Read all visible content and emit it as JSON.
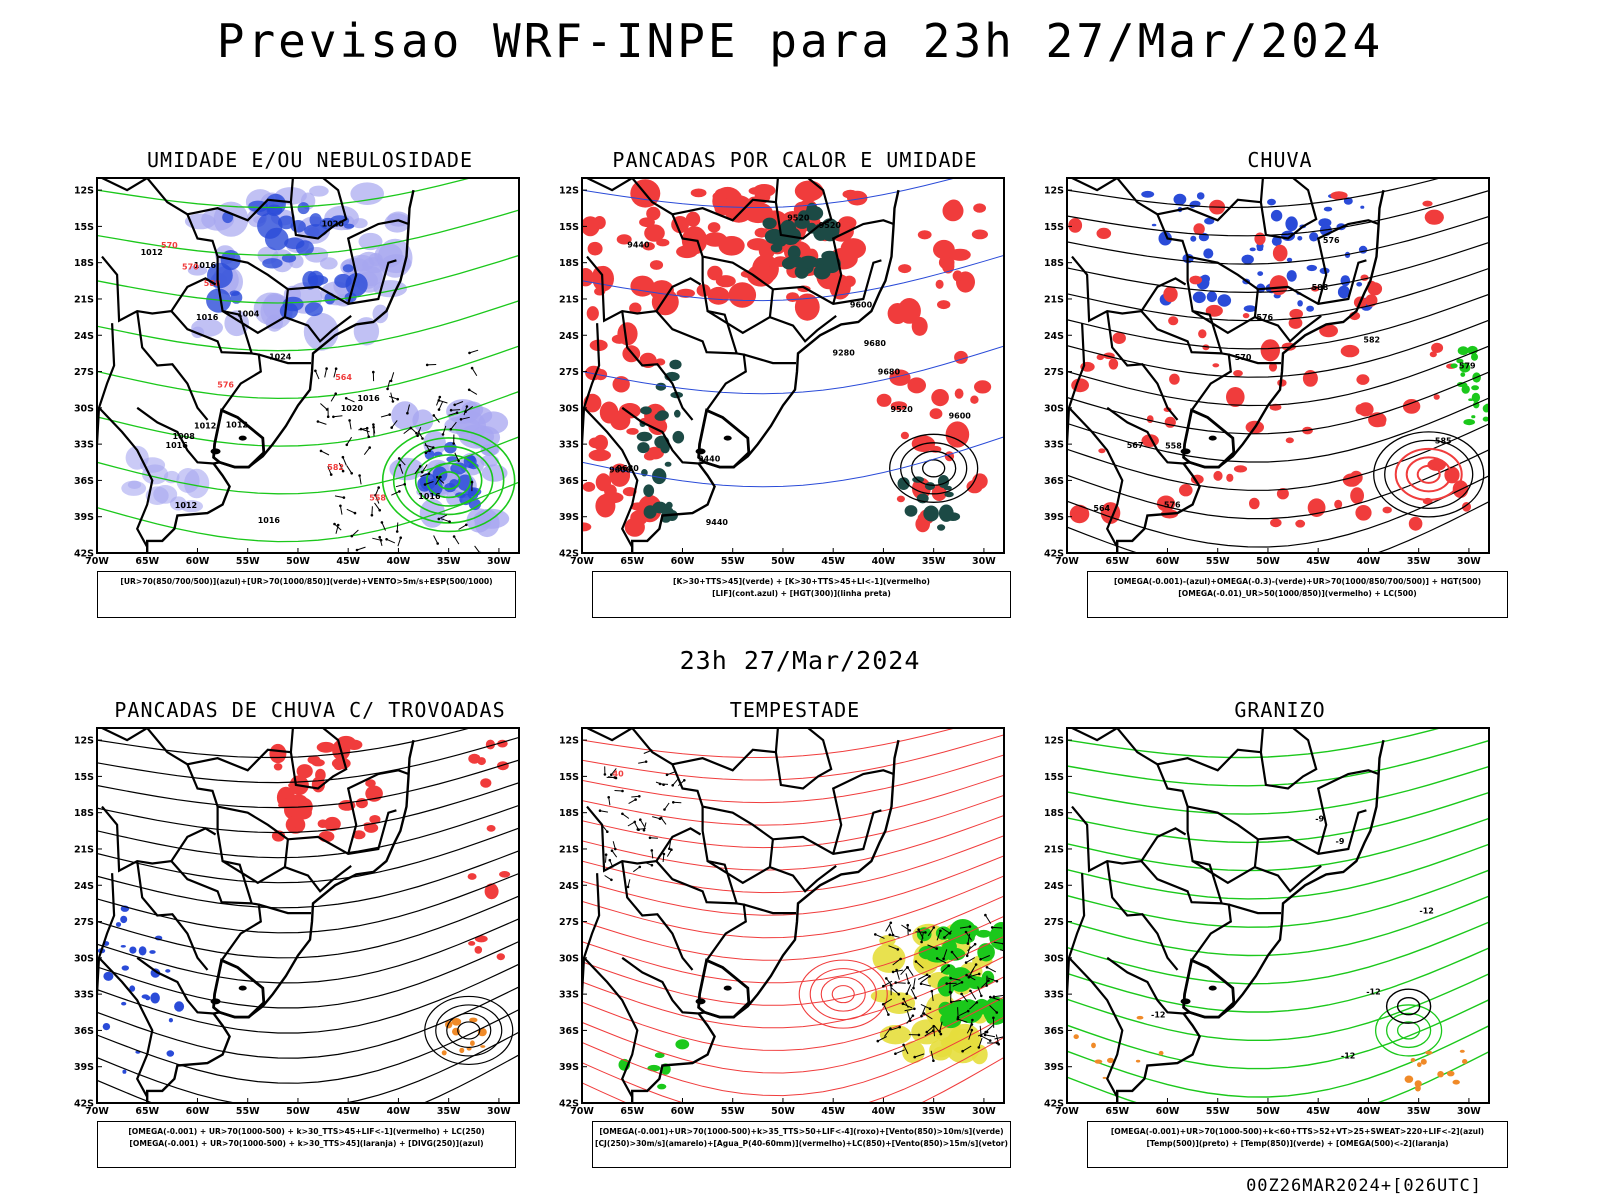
{
  "header": {
    "title": "Previsao WRF-INPE  para 23h 27/Mar/2024"
  },
  "middle_title": "23h 27/Mar/2024",
  "footer_code": "00Z26MAR2024+[026UTC]",
  "axes": {
    "lat_labels": [
      "12S",
      "15S",
      "18S",
      "21S",
      "24S",
      "27S",
      "30S",
      "33S",
      "36S",
      "39S",
      "42S"
    ],
    "lon_labels": [
      "70W",
      "65W",
      "60W",
      "55W",
      "50W",
      "45W",
      "40W",
      "35W",
      "30W"
    ],
    "lat_range": [
      -42,
      -11
    ],
    "lon_range": [
      -70,
      -28
    ]
  },
  "colors": {
    "blue": "#2a4bd8",
    "light_blue": "#a7a6f0",
    "green": "#1bc81b",
    "red": "#f03c3c",
    "dark_teal": "#1c4a45",
    "orange": "#f08a28",
    "yellow": "#e6de3c"
  },
  "panels": [
    {
      "id": "umidade",
      "title": "UMIDADE E/OU NEBULOSIDADE",
      "caption": [
        "[UR>70(850/700/500)](azul)+[UR>70(1000/850)](verde)+VENTO>5m/s+ESP(500/1000)"
      ],
      "contour_labels": [
        "1012",
        "1012",
        "1016",
        "1016",
        "1024",
        "1020",
        "1012",
        "1012",
        "1016",
        "1016",
        "1016",
        "1020",
        "1008",
        "1004",
        "1016",
        "570",
        "564",
        "558",
        "576",
        "570",
        "582",
        "588"
      ]
    },
    {
      "id": "pancadas_calor",
      "title": "PANCADAS POR CALOR E UMIDADE",
      "caption": [
        "[K>30+TTS>45](verde) + [K>30+TTS>45+LI<-1](vermelho)",
        "[LIF](cont.azul) + [HGT(300)](linha preta)"
      ],
      "contour_labels": [
        "9680",
        "9680",
        "9680",
        "9600",
        "9600",
        "9520",
        "9440",
        "9600",
        "9520",
        "9440",
        "9520",
        "9280",
        "9440"
      ]
    },
    {
      "id": "chuva",
      "title": "CHUVA",
      "caption": [
        "[OMEGA(-0.001)-(azul)+OMEGA(-0.3)-(verde)+UR>70(1000/850/700/500)] + HGT(500)",
        "[OMEGA(-0.01)_UR>50(1000/850)](vermelho) + LC(500)"
      ],
      "contour_labels": [
        "585",
        "588",
        "582",
        "576",
        "570",
        "576",
        "567",
        "564",
        "558",
        "579",
        "576"
      ]
    },
    {
      "id": "pancadas_trovoadas",
      "title": "PANCADAS DE CHUVA C/ TROVOADAS",
      "caption": [
        "[OMEGA(-0.001) + UR>70(1000-500) + k>30_TTS>45+LIF<-1](vermelho) + LC(250)",
        "[OMEGA(-0.001) + UR>70(1000-500) + k>30_TTS>45](laranja) + [DIVG(250)](azul)"
      ],
      "contour_labels": []
    },
    {
      "id": "tempestade",
      "title": "TEMPESTADE",
      "caption": [
        "[OMEGA(-0.001)+UR>70(1000-500)+k>35_TTS>50+LIF<-4](roxo)+[Vento(850)>10m/s](verde)",
        "[CJ(250)>30m/s](amarelo)+[Agua_P(40-60mm)](vermelho)+LC(850)+[Vento(850)>15m/s](vetor)"
      ],
      "contour_labels": [
        "40"
      ]
    },
    {
      "id": "granizo",
      "title": "GRANIZO",
      "caption": [
        "[OMEGA(-0.001)+UR>70(1000-500)+k<60+TTS>52+VT>25+SWEAT>220+LIF<-2](azul)",
        "[Temp(500)](preto) + [Temp(850)](verde) + [OMEGA(500)<-2](laranja)"
      ],
      "contour_labels": [
        "-9",
        "-12",
        "-9",
        "-12",
        "-12",
        "-12"
      ]
    }
  ]
}
